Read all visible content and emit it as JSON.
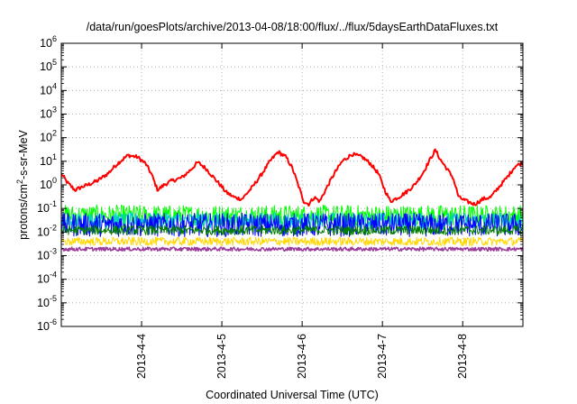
{
  "chart_data": {
    "type": "line",
    "title": "/data/run/goesPlots/archive/2013-04-08/18:00/flux/../flux/5daysEarthDataFluxes.txt",
    "xlabel": "Coordinated Universal Time (UTC)",
    "ylabel": {
      "pre": "protons/cm",
      "sup": "2",
      "post": "-s-sr-MeV"
    },
    "x_unit": "days",
    "xlim": [
      "2013-04-03 02:00",
      "2013-04-08 20:00"
    ],
    "ylim": [
      1e-06,
      1000000.0
    ],
    "y_scale": "log",
    "grid": true,
    "x_ticks": [
      "2013-4-4",
      "2013-4-5",
      "2013-4-6",
      "2013-4-7",
      "2013-4-8"
    ],
    "x_tick_positions": [
      1.0,
      2.0,
      3.0,
      4.0,
      5.0
    ],
    "y_ticks": [
      {
        "base": "10",
        "exp": "-6",
        "value": 1e-06
      },
      {
        "base": "10",
        "exp": "-5",
        "value": 1e-05
      },
      {
        "base": "10",
        "exp": "-4",
        "value": 0.0001
      },
      {
        "base": "10",
        "exp": "-3",
        "value": 0.001
      },
      {
        "base": "10",
        "exp": "-2",
        "value": 0.01
      },
      {
        "base": "10",
        "exp": "-1",
        "value": 0.1
      },
      {
        "base": "10",
        "exp": "0",
        "value": 1
      },
      {
        "base": "10",
        "exp": "1",
        "value": 10
      },
      {
        "base": "10",
        "exp": "2",
        "value": 100
      },
      {
        "base": "10",
        "exp": "3",
        "value": 1000
      },
      {
        "base": "10",
        "exp": "4",
        "value": 10000
      },
      {
        "base": "10",
        "exp": "5",
        "value": 100000
      },
      {
        "base": "10",
        "exp": "6",
        "value": 1000000
      }
    ],
    "series": [
      {
        "color": "#ff0000",
        "stroke_width": 2,
        "noise": 0.08,
        "x": [
          0.0,
          0.08,
          0.17,
          0.25,
          0.33,
          0.45,
          0.58,
          0.7,
          0.83,
          0.95,
          1.05,
          1.12,
          1.2,
          1.28,
          1.38,
          1.5,
          1.6,
          1.7,
          1.8,
          1.9,
          1.98,
          2.05,
          2.15,
          2.25,
          2.38,
          2.5,
          2.6,
          2.7,
          2.8,
          2.88,
          2.95,
          3.02,
          3.08,
          3.15,
          3.22,
          3.3,
          3.4,
          3.5,
          3.62,
          3.75,
          3.85,
          3.95,
          4.03,
          4.1,
          4.2,
          4.3,
          4.4,
          4.5,
          4.58,
          4.66,
          4.72,
          4.8,
          4.88,
          4.95,
          5.05,
          5.15,
          5.25,
          5.35,
          5.45,
          5.55,
          5.65,
          5.75
        ],
        "y": [
          3.0,
          1.2,
          0.6,
          0.8,
          1.0,
          1.5,
          3.0,
          8.0,
          18,
          15,
          8.0,
          3.0,
          0.6,
          1.0,
          1.5,
          2.0,
          4.0,
          9.0,
          5.0,
          2.0,
          1.0,
          0.5,
          0.3,
          0.25,
          0.8,
          3.0,
          10,
          25,
          15,
          5.0,
          1.0,
          0.2,
          0.15,
          0.3,
          0.2,
          0.7,
          3.0,
          10,
          20,
          15,
          8.0,
          3.0,
          0.6,
          0.2,
          0.3,
          0.5,
          1.0,
          3.0,
          10,
          30,
          12,
          5.0,
          2.0,
          0.3,
          0.2,
          0.15,
          0.25,
          0.3,
          0.8,
          2.0,
          6.0,
          9.0
        ]
      },
      {
        "color": "#00ff00",
        "stroke_width": 1,
        "base": 0.05,
        "noise": 0.45
      },
      {
        "color": "#00cccc",
        "stroke_width": 1,
        "base": 0.03,
        "noise": 0.35
      },
      {
        "color": "#0000ff",
        "stroke_width": 1,
        "base": 0.02,
        "noise": 0.5
      },
      {
        "color": "#008000",
        "stroke_width": 1,
        "base": 0.012,
        "noise": 0.2
      },
      {
        "color": "#ffd700",
        "stroke_width": 1,
        "base": 0.004,
        "noise": 0.18
      },
      {
        "color": "#9b3c9b",
        "stroke_width": 1.5,
        "base": 0.0019,
        "noise": 0.08
      }
    ]
  }
}
